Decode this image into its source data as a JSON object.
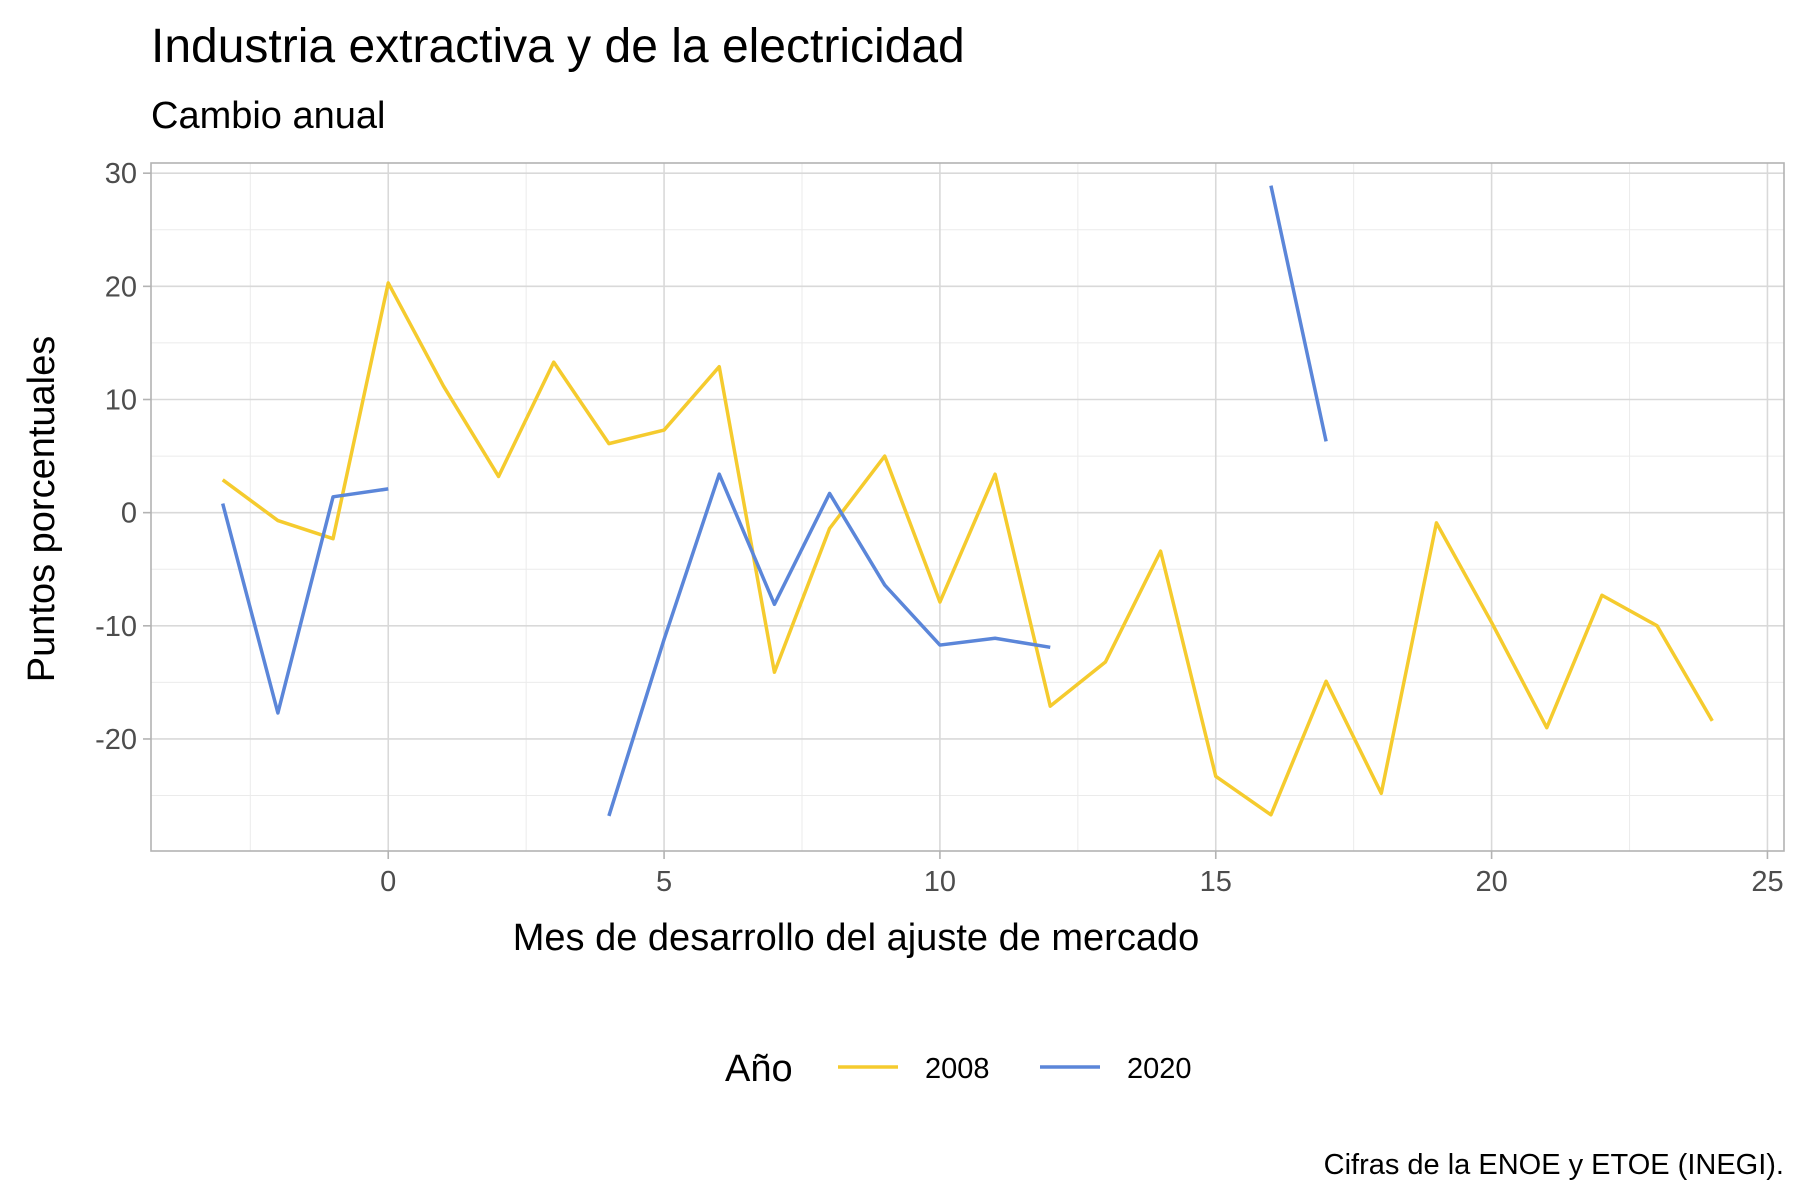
{
  "chart_data": {
    "type": "line",
    "title": "Industria extractiva y de la electricidad",
    "subtitle": "Cambio anual",
    "xlabel": "Mes de desarrollo del ajuste de mercado",
    "ylabel": "Puntos porcentuales",
    "caption": "Cifras de la ENOE y ETOE (INEGI).",
    "xlim": [
      -4.3,
      25.3
    ],
    "ylim": [
      -29.9,
      30.9
    ],
    "x_ticks": [
      0,
      5,
      10,
      15,
      20,
      25
    ],
    "x_tick_labels": [
      "0",
      "5",
      "10",
      "15",
      "20",
      "25"
    ],
    "y_ticks": [
      -20,
      -10,
      0,
      10,
      20,
      30
    ],
    "y_tick_labels": [
      "-20",
      "-10",
      "0",
      "10",
      "20",
      "30"
    ],
    "grid": true,
    "legend": {
      "title": "Año",
      "placement": "bottom"
    },
    "series": [
      {
        "name": "2008",
        "color": "#F5CB2E",
        "segments": [
          [
            [
              -3,
              2.9
            ],
            [
              -2,
              -0.7
            ],
            [
              -1,
              -2.3
            ],
            [
              0,
              20.3
            ],
            [
              1,
              11.2
            ],
            [
              2,
              3.2
            ],
            [
              3,
              13.3
            ],
            [
              4,
              6.1
            ],
            [
              5,
              7.3
            ],
            [
              6,
              12.9
            ],
            [
              7,
              -14.1
            ],
            [
              8,
              -1.4
            ],
            [
              9,
              5.0
            ],
            [
              10,
              -7.9
            ],
            [
              11,
              3.4
            ],
            [
              12,
              -17.1
            ],
            [
              13,
              -13.2
            ],
            [
              14,
              -3.4
            ],
            [
              15,
              -23.3
            ],
            [
              16,
              -26.7
            ],
            [
              17,
              -14.9
            ],
            [
              18,
              -24.8
            ],
            [
              19,
              -0.9
            ],
            [
              20,
              -9.7
            ],
            [
              21,
              -19.0
            ],
            [
              22,
              -7.3
            ],
            [
              23,
              -10.0
            ],
            [
              24,
              -18.4
            ]
          ]
        ]
      },
      {
        "name": "2020",
        "color": "#5B86D9",
        "segments": [
          [
            [
              -3,
              0.8
            ],
            [
              -2,
              -17.7
            ],
            [
              -1,
              1.4
            ],
            [
              0,
              2.1
            ]
          ],
          [
            [
              4,
              -26.8
            ],
            [
              5,
              -11.2
            ],
            [
              6,
              3.4
            ],
            [
              7,
              -8.1
            ],
            [
              8,
              1.7
            ],
            [
              9,
              -6.4
            ],
            [
              10,
              -11.7
            ],
            [
              11,
              -11.1
            ],
            [
              12,
              -11.9
            ]
          ],
          [
            [
              16,
              28.9
            ],
            [
              17,
              6.3
            ]
          ]
        ]
      }
    ]
  }
}
